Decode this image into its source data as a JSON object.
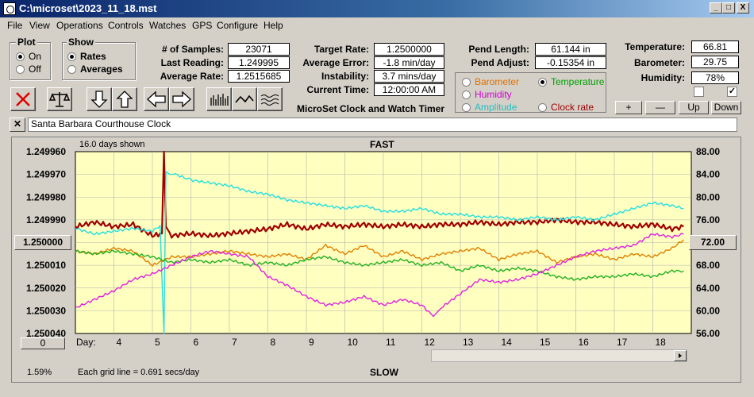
{
  "window": {
    "title": "C:\\microset\\2023_11_18.mst"
  },
  "menu": [
    "File",
    "View",
    "Operations",
    "Controls",
    "Watches",
    "GPS",
    "Configure",
    "Help"
  ],
  "plot_group": {
    "title": "Plot",
    "on": "On",
    "off": "Off",
    "selected": "On"
  },
  "show_group": {
    "title": "Show",
    "rates": "Rates",
    "averages": "Averages",
    "selected": "Rates"
  },
  "stats": {
    "samples_label": "# of Samples:",
    "samples": "23071",
    "last_reading_label": "Last Reading:",
    "last_reading": "1.249995",
    "average_rate_label": "Average Rate:",
    "average_rate": "1.2515685",
    "target_rate_label": "Target Rate:",
    "target_rate": "1.2500000",
    "average_error_label": "Average Error:",
    "average_error": "-1.8 min/day",
    "instability_label": "Instability:",
    "instability": "3.7 mins/day",
    "current_time_label": "Current Time:",
    "current_time": "12:00:00 AM",
    "pend_length_label": "Pend Length:",
    "pend_length": "61.144 in",
    "pend_adjust_label": "Pend Adjust:",
    "pend_adjust": "-0.15354 in",
    "temperature_label": "Temperature:",
    "temperature": "66.81",
    "barometer_label": "Barometer:",
    "barometer": "29.75",
    "humidity_label": "Humidity:",
    "humidity": "78%"
  },
  "app_heading": "MicroSet Clock and Watch Timer",
  "sensor_select": {
    "barometer": "Barometer",
    "temperature": "Temperature",
    "humidity": "Humidity",
    "amplitude": "Amplitude",
    "clock_rate": "Clock rate",
    "selected": "Temperature",
    "colors": {
      "barometer": "#e07000",
      "temperature": "#00a000",
      "humidity": "#d000d0",
      "amplitude": "#20c0c0",
      "clock_rate": "#a00000"
    }
  },
  "scale_buttons": {
    "plus": "+",
    "minus": "—",
    "up": "Up",
    "down": "Down"
  },
  "clock_name": "Santa Barbara Courthouse Clock",
  "chart_data": {
    "type": "line",
    "header_left": "16.0 days shown",
    "header_center": "FAST",
    "footer_left": "Each grid line = 0.691 secs/day",
    "footer_center": "SLOW",
    "status_left": "1.59%",
    "center_button": "1.250000",
    "right_button": "72.00",
    "bottom_left_button": "0",
    "xlabel": "Day:",
    "x_ticks": [
      4,
      5,
      6,
      7,
      8,
      9,
      10,
      11,
      12,
      13,
      14,
      15,
      16,
      17,
      18
    ],
    "xlim": [
      3.0,
      19.0
    ],
    "y_left_ticks": [
      "1.249960",
      "1.249970",
      "1.249980",
      "1.249990",
      "1.250000",
      "1.250010",
      "1.250020",
      "1.250030",
      "1.250040"
    ],
    "y_left_range": [
      1.24996,
      1.25004
    ],
    "y_right_ticks": [
      "88.00",
      "84.00",
      "80.00",
      "76.00",
      "72.00",
      "68.00",
      "64.00",
      "60.00",
      "56.00"
    ],
    "y_right_range": [
      88,
      56
    ],
    "colors": {
      "background": "#ffffc0",
      "grid": "#b0b0b0"
    },
    "series": [
      {
        "color": "#a00000",
        "width": 2.2,
        "axis": "left",
        "x": [
          3.0,
          3.5,
          4.0,
          4.5,
          5.0,
          5.25,
          5.3,
          5.35,
          5.5,
          6.0,
          6.5,
          7.0,
          7.5,
          8.0,
          8.5,
          9.0,
          9.5,
          10.0,
          10.5,
          11.0,
          11.5,
          12.0,
          12.5,
          13.0,
          13.5,
          14.0,
          14.5,
          15.0,
          15.5,
          16.0,
          16.5,
          17.0,
          17.5,
          18.0,
          18.5,
          18.8
        ],
        "y": [
          1.249993,
          1.249991,
          1.249993,
          1.249992,
          1.249997,
          1.249996,
          1.24996,
          1.249993,
          1.249997,
          1.249996,
          1.249997,
          1.249996,
          1.249995,
          1.249994,
          1.249992,
          1.249994,
          1.249992,
          1.249993,
          1.249992,
          1.249993,
          1.249992,
          1.249993,
          1.249992,
          1.249992,
          1.249991,
          1.249992,
          1.249991,
          1.249991,
          1.24999,
          1.249991,
          1.249991,
          1.249992,
          1.249993,
          1.249992,
          1.249994,
          1.249993
        ]
      },
      {
        "color": "#20e0e0",
        "width": 1.4,
        "axis": "right",
        "x": [
          3.0,
          3.5,
          4.0,
          4.5,
          5.0,
          5.2,
          5.3,
          5.35,
          5.45,
          5.6,
          6.0,
          6.5,
          7.0,
          7.5,
          8.0,
          8.5,
          9.0,
          9.5,
          10.0,
          10.5,
          11.0,
          11.5,
          12.0,
          12.5,
          13.0,
          13.5,
          14.0,
          14.5,
          15.0,
          15.5,
          16.0,
          16.5,
          17.0,
          17.5,
          18.0,
          18.5,
          18.8
        ],
        "y": [
          74.5,
          73.5,
          74.0,
          74.5,
          74.0,
          75.0,
          56.0,
          84.5,
          84.0,
          84.0,
          83.0,
          82.5,
          82.0,
          81.0,
          80.5,
          79.5,
          79.0,
          78.5,
          78.0,
          78.5,
          77.5,
          77.5,
          78.0,
          77.0,
          77.0,
          76.5,
          76.5,
          76.0,
          76.5,
          76.0,
          76.5,
          76.0,
          77.0,
          78.0,
          79.0,
          78.5,
          78.0
        ]
      },
      {
        "color": "#e08000",
        "width": 1.4,
        "axis": "right",
        "x": [
          3.0,
          3.5,
          4.0,
          4.5,
          5.0,
          5.5,
          6.0,
          6.5,
          7.0,
          7.5,
          8.0,
          8.5,
          9.0,
          9.5,
          10.0,
          10.5,
          11.0,
          11.5,
          12.0,
          12.5,
          13.0,
          13.5,
          14.0,
          14.5,
          15.0,
          15.5,
          16.0,
          16.5,
          17.0,
          17.5,
          18.0,
          18.5,
          18.8
        ],
        "y": [
          70.5,
          70.0,
          71.0,
          70.5,
          68.0,
          69.5,
          69.5,
          70.0,
          70.5,
          70.0,
          69.5,
          70.0,
          69.0,
          71.5,
          70.0,
          71.5,
          69.5,
          70.5,
          69.0,
          70.0,
          70.5,
          71.0,
          69.0,
          70.0,
          70.5,
          68.5,
          69.5,
          70.0,
          69.0,
          70.0,
          69.5,
          71.0,
          72.5
        ]
      },
      {
        "color": "#20b020",
        "width": 1.4,
        "axis": "right",
        "x": [
          3.0,
          3.5,
          4.0,
          4.5,
          5.0,
          5.5,
          6.0,
          6.5,
          7.0,
          7.5,
          8.0,
          8.5,
          9.0,
          9.5,
          10.0,
          10.5,
          11.0,
          11.5,
          12.0,
          12.5,
          13.0,
          13.5,
          14.0,
          14.5,
          15.0,
          15.5,
          16.0,
          16.5,
          17.0,
          17.5,
          18.0,
          18.5,
          18.8
        ],
        "y": [
          70.5,
          70.0,
          70.5,
          70.0,
          69.5,
          68.5,
          69.0,
          68.5,
          69.0,
          68.0,
          68.5,
          68.0,
          69.0,
          69.5,
          68.5,
          68.0,
          68.5,
          69.0,
          68.0,
          68.5,
          67.0,
          68.0,
          67.0,
          67.5,
          67.0,
          66.0,
          65.5,
          66.0,
          66.0,
          66.5,
          66.0,
          67.0,
          67.0
        ]
      },
      {
        "color": "#e020e0",
        "width": 1.4,
        "axis": "right",
        "x": [
          3.0,
          3.5,
          4.0,
          4.5,
          5.0,
          5.5,
          6.0,
          6.5,
          7.0,
          7.5,
          8.0,
          8.5,
          9.0,
          9.5,
          10.0,
          10.5,
          11.0,
          11.5,
          12.0,
          12.3,
          12.5,
          13.0,
          13.5,
          14.0,
          14.5,
          15.0,
          15.5,
          16.0,
          16.5,
          17.0,
          17.5,
          18.0,
          18.5,
          18.8
        ],
        "y": [
          60.5,
          62.0,
          63.5,
          65.5,
          66.5,
          68.0,
          69.5,
          70.5,
          70.0,
          69.5,
          66.0,
          64.5,
          62.5,
          61.0,
          61.5,
          62.5,
          61.0,
          62.0,
          61.0,
          59.0,
          60.5,
          63.0,
          65.5,
          65.0,
          65.5,
          66.5,
          68.0,
          69.5,
          70.5,
          71.0,
          71.5,
          73.5,
          73.0,
          73.5
        ]
      }
    ]
  }
}
